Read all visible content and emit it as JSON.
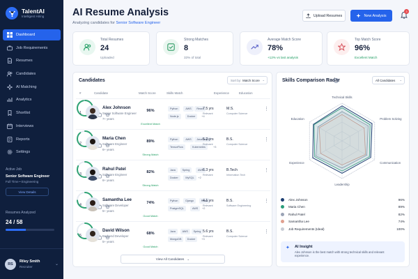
{
  "brand": {
    "name": "TalentAI",
    "tagline": "Intelligent Hiring"
  },
  "nav": [
    {
      "label": "Dashboard",
      "icon": "grid-icon",
      "active": true
    },
    {
      "label": "Job Requirements",
      "icon": "briefcase-icon",
      "active": false
    },
    {
      "label": "Resumes",
      "icon": "file-icon",
      "active": false
    },
    {
      "label": "Candidates",
      "icon": "users-icon",
      "active": false
    },
    {
      "label": "AI Matching",
      "icon": "sparkle-icon",
      "active": false
    },
    {
      "label": "Analytics",
      "icon": "chart-icon",
      "active": false
    },
    {
      "label": "Shortlist",
      "icon": "bookmark-icon",
      "active": false
    },
    {
      "label": "Interviews",
      "icon": "calendar-icon",
      "active": false
    },
    {
      "label": "Reports",
      "icon": "report-icon",
      "active": false
    },
    {
      "label": "Settings",
      "icon": "gear-icon",
      "active": false
    }
  ],
  "active_job": {
    "label": "Active Job",
    "title": "Senior Software Engineer",
    "meta": "Full Time • Engineering",
    "button": "View Details"
  },
  "analyzed": {
    "label": "Resumes Analyzed",
    "value": "24 / 58",
    "progress": 0.41
  },
  "user": {
    "initials": "RS",
    "name": "Riley Smith",
    "role": "Recruiter"
  },
  "header": {
    "title": "AI Resume Analysis",
    "subtitle_prefix": "Analyzing candidates for ",
    "subtitle_job": "Senior Software Engineer",
    "upload_label": "Upload Resumes",
    "new_label": "New Analysis",
    "notif_count": "3"
  },
  "stats": [
    {
      "label": "Total Resumes",
      "value": "24",
      "sub": "Uploaded",
      "sub_color": "gray",
      "icon": "users-icon",
      "icon_bg": "#e8f7f0",
      "icon_color": "#1f9d62"
    },
    {
      "label": "Strong Matches",
      "value": "8",
      "sub": "33% of total",
      "sub_color": "gray",
      "icon": "check-icon",
      "icon_bg": "#e9f6ef",
      "icon_color": "#2e9a63"
    },
    {
      "label": "Average Match Score",
      "value": "78%",
      "sub": "+12% vs last analysis",
      "sub_color": "green",
      "icon": "trend-icon",
      "icon_bg": "#eef0fb",
      "icon_color": "#5b62c9"
    },
    {
      "label": "Top Match Score",
      "value": "96%",
      "sub": "Excellent Match",
      "sub_color": "green",
      "icon": "star-icon",
      "icon_bg": "#fdeeee",
      "icon_color": "#d7505a"
    }
  ],
  "candidates": {
    "title": "Candidates",
    "sort_prefix": "Sort by:",
    "sort_value": "Match Score",
    "columns": [
      "#",
      "Candidate",
      "Match Score",
      "Skills Match",
      "Experience",
      "Education"
    ],
    "view_all": "View All Candidates",
    "rows": [
      {
        "num": "1",
        "name": "Alex Johnson",
        "role": "Senior Software Engineer",
        "exp": "7+ years",
        "score": 96,
        "score_text": "96%",
        "score_label": "Excellent Match",
        "skills": [
          "Python",
          "AWS",
          "React",
          "Node.js",
          "Docker"
        ],
        "more": "+4",
        "years": "7.5 yrs",
        "years_sub": "Relevant",
        "degree": "M.S.",
        "field": "Computer Science",
        "hair": "#3b2a20",
        "shirt": "#2b3548"
      },
      {
        "num": "2",
        "name": "Maria Chen",
        "role": "Software Engineer",
        "exp": "6+ years",
        "score": 89,
        "score_text": "89%",
        "score_label": "Strong Match",
        "skills": [
          "Python",
          "AWS",
          "JavaScript",
          "TensorFlow",
          "Kubernetes"
        ],
        "more": "+3",
        "years": "5.2 yrs",
        "years_sub": "Relevant",
        "degree": "B.S.",
        "field": "Computer Science",
        "hair": "#1d1714",
        "shirt": "#e8e4dc"
      },
      {
        "num": "3",
        "name": "Rahul Patel",
        "role": "Software Engineer",
        "exp": "6+ years",
        "score": 82,
        "score_text": "82%",
        "score_label": "Strong Match",
        "skills": [
          "Java",
          "Spring",
          "AWS",
          "Docker",
          "MySQL"
        ],
        "more": "+2",
        "years": "6.3 yrs",
        "years_sub": "Relevant",
        "degree": "B.Tech",
        "field": "Information Tech",
        "hair": "#1a1411",
        "shirt": "#3a4a66"
      },
      {
        "num": "4",
        "name": "Samantha Lee",
        "role": "Software Developer",
        "exp": "5+ years",
        "score": 74,
        "score_text": "74%",
        "score_label": "Good Match",
        "skills": [
          "Python",
          "Django",
          "React",
          "PostgreSQL",
          "AWS"
        ],
        "more": "+2",
        "years": "4.1 yrs",
        "years_sub": "Relevant",
        "degree": "B.S.",
        "field": "Software Engineering",
        "hair": "#2a1d16",
        "shirt": "#c9c2b8"
      },
      {
        "num": "5",
        "name": "David Wilson",
        "role": "Backend Developer",
        "exp": "5+ years",
        "score": 68,
        "score_text": "68%",
        "score_label": "Good Match",
        "skills": [
          "Java",
          "AWS",
          "Spring",
          "MongoDB",
          "Docker"
        ],
        "more": "+3",
        "years": "5.6 yrs",
        "years_sub": "Relevant",
        "degree": "B.S.",
        "field": "Computer Science",
        "hair": "#2e241d",
        "shirt": "#e6e2da"
      }
    ]
  },
  "radar": {
    "title": "Skills Comparison Radar",
    "filter": "All Candidates",
    "axes": [
      "Technical Skills",
      "Problem Solving",
      "Communication",
      "Leadership",
      "Experience",
      "Education"
    ],
    "series": [
      {
        "name": "Alex Johnson",
        "pct": "96%",
        "color": "#1d3f72",
        "values": [
          0.93,
          0.92,
          0.88,
          0.86,
          0.9,
          0.88
        ]
      },
      {
        "name": "Maria Chen",
        "pct": "89%",
        "color": "#2a9d7a",
        "values": [
          0.88,
          0.86,
          0.84,
          0.8,
          0.84,
          0.86
        ]
      },
      {
        "name": "Rahul Patel",
        "pct": "82%",
        "color": "#9aa3b5",
        "values": [
          0.78,
          0.8,
          0.76,
          0.72,
          0.8,
          0.74
        ]
      },
      {
        "name": "Samantha Lee",
        "pct": "74%",
        "color": "#e0a090",
        "values": [
          0.7,
          0.68,
          0.72,
          0.64,
          0.66,
          0.7
        ]
      },
      {
        "name": "Job Requirements (Ideal)",
        "pct": "100%",
        "color": "#c8ccd6",
        "values": [
          1,
          1,
          1,
          1,
          1,
          1
        ]
      }
    ],
    "insight_title": "AI Insight",
    "insight_text": "Alex Johnson is the best match with strong technical skills and relevant experience."
  }
}
